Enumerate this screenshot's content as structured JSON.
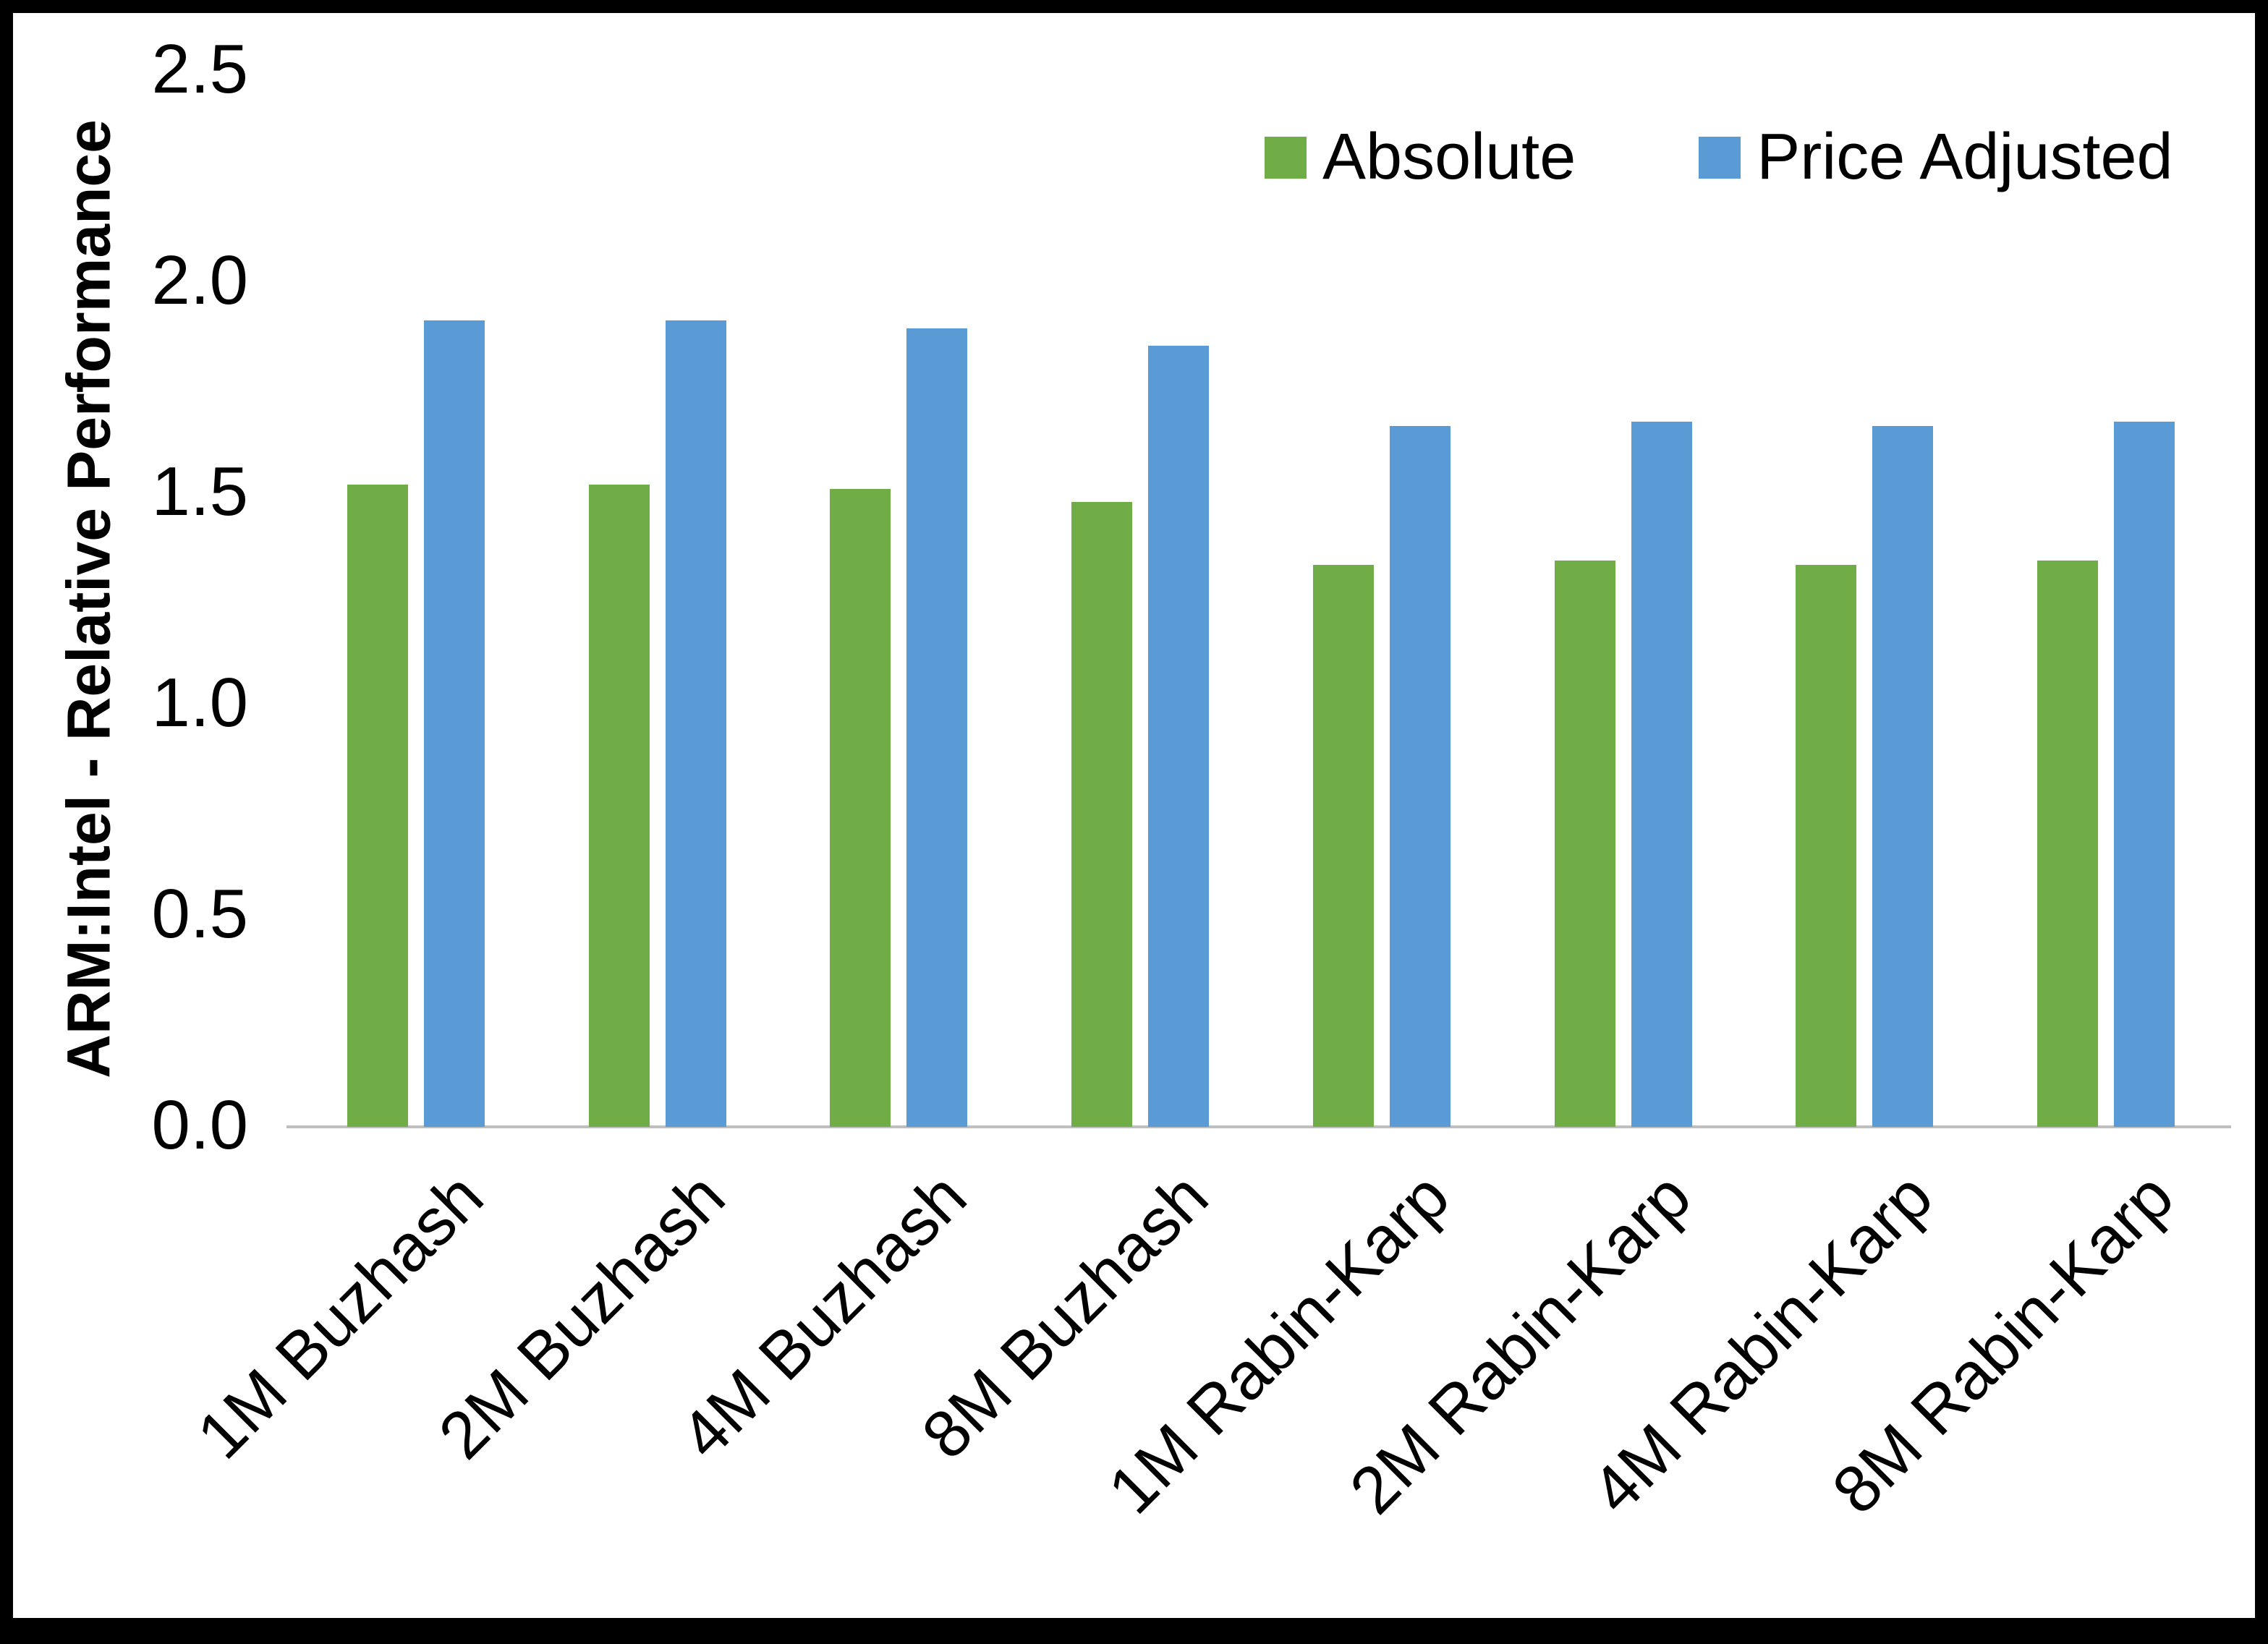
{
  "chart_data": {
    "type": "bar",
    "title": "",
    "ylabel": "ARM:Intel - Relative Performance",
    "xlabel": "",
    "ylim": [
      0,
      2.5
    ],
    "yticks": [
      0,
      0.5,
      1,
      1.5,
      2,
      2.5
    ],
    "ytick_labels": [
      "0.0",
      "0.5",
      "1.0",
      "1.5",
      "2.0",
      "2.5"
    ],
    "grid": false,
    "legend_position": "top-right-inside",
    "categories": [
      "1M Buzhash",
      "2M Buzhash",
      "4M Buzhash",
      "8M Buzhash",
      "1M Rabin-Karp",
      "2M Rabin-Karp",
      "4M Rabin-Karp",
      "8M Rabin-Karp"
    ],
    "series": [
      {
        "name": "Absolute",
        "color": "#70AD47",
        "values": [
          1.52,
          1.52,
          1.51,
          1.48,
          1.33,
          1.34,
          1.33,
          1.34
        ]
      },
      {
        "name": "Price Adjusted",
        "color": "#5B9BD5",
        "values": [
          1.91,
          1.91,
          1.89,
          1.85,
          1.66,
          1.67,
          1.66,
          1.67
        ]
      }
    ],
    "colors": {
      "absolute_series": "#70AD47",
      "price_adjusted_series": "#5B9BD5",
      "axis_line": "#BFBFBF",
      "text": "#000000"
    }
  }
}
